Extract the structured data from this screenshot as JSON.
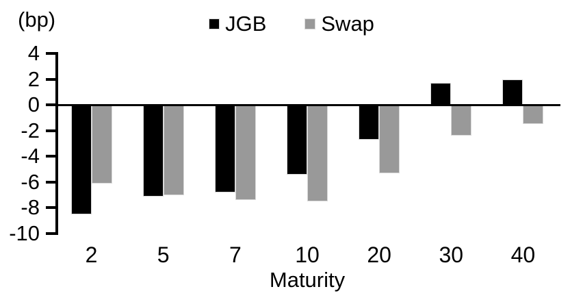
{
  "chart_data": {
    "type": "bar",
    "title": "",
    "unit_label": "(bp)",
    "xlabel": "Maturity",
    "categories": [
      "2",
      "5",
      "7",
      "10",
      "20",
      "30",
      "40"
    ],
    "series": [
      {
        "name": "JGB",
        "color": "#000000",
        "values": [
          -8.5,
          -7.1,
          -6.8,
          -5.4,
          -2.7,
          1.7,
          2.0
        ]
      },
      {
        "name": "Swap",
        "color": "#999999",
        "values": [
          -6.1,
          -7.0,
          -7.4,
          -7.5,
          -5.3,
          -2.4,
          -1.5
        ]
      }
    ],
    "y_axis": {
      "min": -10,
      "max": 4,
      "tick_step": 2,
      "ticks": [
        4,
        2,
        0,
        -2,
        -4,
        -6,
        -8,
        -10
      ]
    },
    "legend_position": "top",
    "grid": false
  },
  "colors": {
    "axis": "#000000",
    "background": "#ffffff",
    "bar_outline": "#d9d9d9"
  }
}
